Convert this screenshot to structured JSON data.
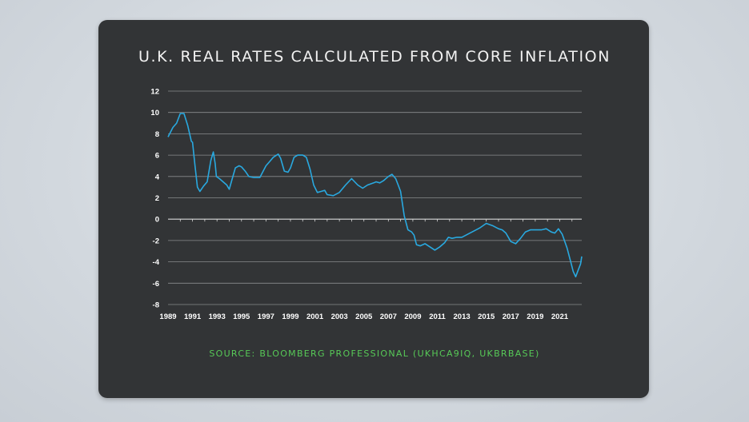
{
  "chart_data": {
    "type": "line",
    "title": "U.K. REAL RATES CALCULATED FROM CORE INFLATION",
    "source": "SOURCE: BLOOMBERG PROFESSIONAL (UKHCA9IQ, UKBRBASE)",
    "xlabel": "",
    "ylabel": "",
    "xlim": [
      1989,
      2022.8
    ],
    "ylim": [
      -8,
      12
    ],
    "x_ticks": [
      "1989",
      "1991",
      "1993",
      "1995",
      "1997",
      "1999",
      "2001",
      "2003",
      "2005",
      "2007",
      "2009",
      "2011",
      "2013",
      "2015",
      "2017",
      "2019",
      "2021"
    ],
    "y_ticks": [
      12,
      10,
      8,
      6,
      4,
      2,
      0,
      -2,
      -4,
      -6,
      -8
    ],
    "grid": true,
    "line_color": "#29a9e0",
    "series": [
      {
        "x": [
          1989.0,
          1989.4,
          1989.7,
          1990.0,
          1990.3,
          1990.6,
          1990.9,
          1991.0,
          1991.2,
          1991.4,
          1991.6,
          1991.9,
          1992.2,
          1992.5,
          1992.7,
          1992.85,
          1992.95,
          1993.2,
          1993.5,
          1993.8,
          1994.0,
          1994.2,
          1994.5,
          1994.8,
          1995.0,
          1995.3,
          1995.6,
          1996.0,
          1996.5,
          1997.0,
          1997.3,
          1997.6,
          1998.0,
          1998.2,
          1998.5,
          1998.8,
          1999.0,
          1999.3,
          1999.6,
          2000.0,
          2000.3,
          2000.6,
          2000.9,
          2001.2,
          2001.5,
          2001.8,
          2002.0,
          2002.5,
          2003.0,
          2003.5,
          2004.0,
          2004.5,
          2004.9,
          2005.3,
          2005.8,
          2006.0,
          2006.3,
          2006.6,
          2007.0,
          2007.3,
          2007.6,
          2007.8,
          2008.0,
          2008.3,
          2008.6,
          2008.9,
          2009.1,
          2009.3,
          2009.6,
          2010.0,
          2010.4,
          2010.8,
          2011.2,
          2011.6,
          2011.9,
          2012.2,
          2012.6,
          2013.0,
          2013.5,
          2014.0,
          2014.5,
          2015.0,
          2015.5,
          2016.0,
          2016.3,
          2016.6,
          2017.0,
          2017.4,
          2017.8,
          2018.2,
          2018.6,
          2019.0,
          2019.5,
          2019.9,
          2020.3,
          2020.6,
          2020.9,
          2021.2,
          2021.6,
          2021.9,
          2022.1,
          2022.3,
          2022.5,
          2022.7,
          2022.8
        ],
        "values": [
          7.7,
          8.6,
          9.0,
          9.9,
          9.9,
          8.8,
          7.3,
          7.2,
          5.0,
          3.0,
          2.6,
          3.1,
          3.5,
          5.5,
          6.3,
          5.2,
          4.0,
          3.8,
          3.5,
          3.2,
          2.8,
          3.6,
          4.8,
          5.0,
          4.9,
          4.5,
          4.0,
          3.9,
          3.9,
          5.0,
          5.4,
          5.8,
          6.1,
          5.7,
          4.5,
          4.4,
          4.8,
          5.8,
          6.0,
          6.0,
          5.8,
          4.7,
          3.2,
          2.5,
          2.6,
          2.7,
          2.3,
          2.2,
          2.5,
          3.2,
          3.8,
          3.2,
          2.9,
          3.2,
          3.4,
          3.5,
          3.4,
          3.6,
          4.0,
          4.2,
          3.8,
          3.2,
          2.6,
          0.3,
          -1.0,
          -1.2,
          -1.5,
          -2.4,
          -2.5,
          -2.3,
          -2.6,
          -2.9,
          -2.6,
          -2.2,
          -1.7,
          -1.8,
          -1.7,
          -1.7,
          -1.4,
          -1.1,
          -0.8,
          -0.4,
          -0.6,
          -0.9,
          -1.0,
          -1.3,
          -2.1,
          -2.3,
          -1.8,
          -1.2,
          -1.0,
          -1.0,
          -1.0,
          -0.9,
          -1.2,
          -1.3,
          -0.9,
          -1.4,
          -2.7,
          -4.0,
          -4.9,
          -5.4,
          -4.8,
          -4.2,
          -3.5
        ]
      }
    ]
  }
}
